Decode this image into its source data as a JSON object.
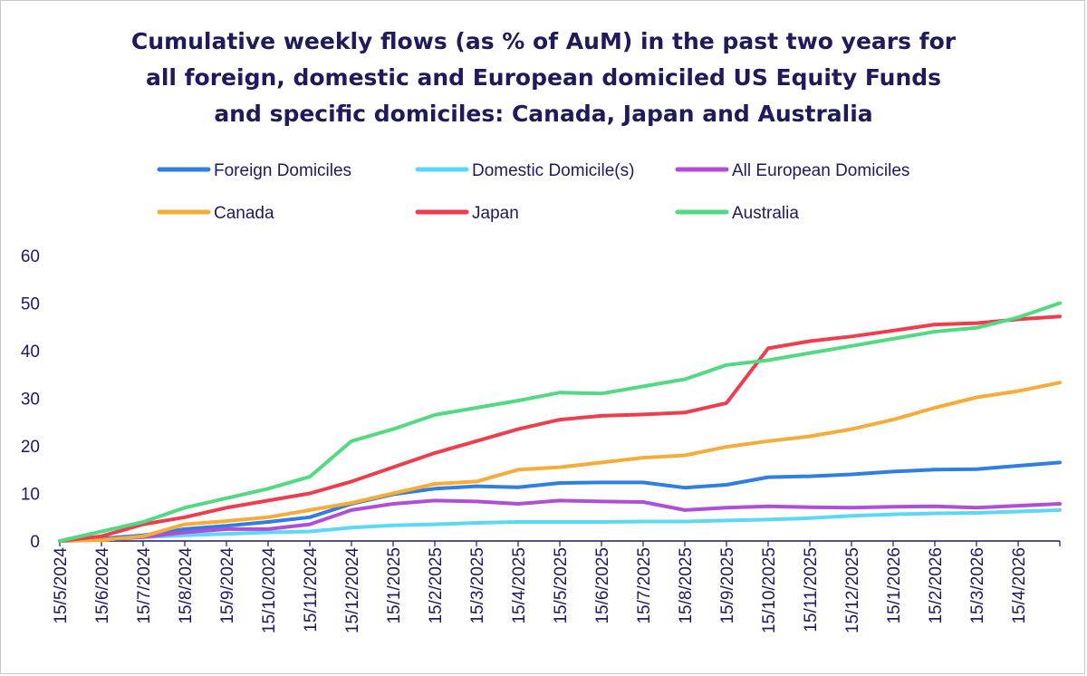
{
  "chart_data": {
    "type": "line",
    "title_lines": [
      "Cumulative weekly flows (as % of AuM) in the past two years for",
      "all foreign, domestic and European domiciled US Equity Funds",
      "and specific domiciles: Canada, Japan and Australia"
    ],
    "xlabel": "",
    "ylabel": "",
    "ylim": [
      0,
      60
    ],
    "yticks": [
      0,
      10,
      20,
      30,
      40,
      50,
      60
    ],
    "grid": false,
    "legend_position": "top",
    "x_tick_labels": [
      "15/5/2024",
      "15/6/2024",
      "15/7/2024",
      "15/8/2024",
      "15/9/2024",
      "15/10/2024",
      "15/11/2024",
      "15/12/2024",
      "15/1/2025",
      "15/2/2025",
      "15/3/2025",
      "15/4/2025",
      "15/5/2025",
      "15/6/2025",
      "15/7/2025",
      "15/8/2025",
      "15/9/2025",
      "15/10/2025",
      "15/11/2025",
      "15/12/2025",
      "15/1/2026",
      "15/2/2026",
      "15/3/2026",
      "15/4/2026"
    ],
    "x_months": [
      "2024-05",
      "2024-06",
      "2024-07",
      "2024-08",
      "2024-09",
      "2024-10",
      "2024-11",
      "2024-12",
      "2025-01",
      "2025-02",
      "2025-03",
      "2025-04",
      "2025-05",
      "2025-06",
      "2025-07",
      "2025-08",
      "2025-09",
      "2025-10",
      "2025-11",
      "2025-12",
      "2026-01",
      "2026-02",
      "2026-03",
      "2026-04",
      "2026-05"
    ],
    "series": [
      {
        "name": "Foreign Domiciles",
        "color": "#2f7ee0",
        "values": [
          0,
          0.5,
          1.2,
          2.5,
          3.2,
          4.0,
          5.0,
          7.8,
          9.8,
          11.0,
          11.5,
          11.3,
          12.2,
          12.3,
          12.3,
          11.2,
          11.8,
          13.4,
          13.6,
          14.0,
          14.6,
          15.0,
          15.1,
          15.8,
          16.5
        ]
      },
      {
        "name": "Domestic Domicile(s)",
        "color": "#5ad8f5",
        "values": [
          0,
          0.3,
          0.8,
          1.2,
          1.5,
          1.8,
          2.0,
          2.8,
          3.3,
          3.5,
          3.8,
          4.0,
          4.0,
          4.0,
          4.1,
          4.1,
          4.3,
          4.5,
          4.8,
          5.3,
          5.6,
          5.8,
          5.9,
          6.2,
          6.5
        ]
      },
      {
        "name": "All European Domiciles",
        "color": "#b04ed6",
        "values": [
          0,
          0.3,
          0.8,
          1.8,
          2.5,
          2.5,
          3.5,
          6.5,
          7.8,
          8.5,
          8.3,
          7.8,
          8.5,
          8.3,
          8.2,
          6.5,
          7.0,
          7.3,
          7.1,
          7.0,
          7.2,
          7.3,
          7.0,
          7.4,
          7.8
        ]
      },
      {
        "name": "Canada",
        "color": "#f7ab3a",
        "values": [
          0,
          0.2,
          1.0,
          3.5,
          4.2,
          5.0,
          6.5,
          8.0,
          10.0,
          12.0,
          12.5,
          15.0,
          15.5,
          16.5,
          17.5,
          18.0,
          19.8,
          21.0,
          22.0,
          23.5,
          25.5,
          28.0,
          30.2,
          31.5,
          33.3
        ]
      },
      {
        "name": "Japan",
        "color": "#ee3d4c",
        "values": [
          0,
          1.0,
          3.5,
          5.0,
          7.0,
          8.5,
          10.0,
          12.5,
          15.5,
          18.5,
          21.0,
          23.5,
          25.5,
          26.3,
          26.6,
          27.0,
          29.0,
          40.5,
          42.0,
          43.0,
          44.2,
          45.5,
          45.8,
          46.6,
          47.2
        ]
      },
      {
        "name": "Australia",
        "color": "#52d982",
        "values": [
          0,
          2.0,
          4.0,
          7.0,
          9.0,
          11.0,
          13.5,
          21.0,
          23.5,
          26.5,
          28.0,
          29.5,
          31.2,
          31.0,
          32.5,
          34.0,
          37.0,
          38.0,
          39.5,
          41.0,
          42.5,
          44.0,
          44.8,
          47.0,
          50.0
        ]
      }
    ]
  }
}
